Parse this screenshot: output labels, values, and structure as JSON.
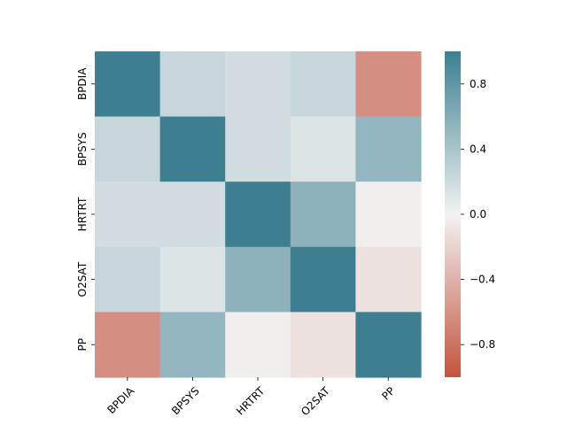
{
  "chart_data": {
    "type": "heatmap",
    "title": "",
    "xlabel": "",
    "ylabel": "",
    "rows": [
      "BPDIA",
      "BPSYS",
      "HRTRT",
      "O2SAT",
      "PP"
    ],
    "cols": [
      "BPDIA",
      "BPSYS",
      "HRTRT",
      "O2SAT",
      "PP"
    ],
    "values": [
      [
        1.0,
        0.24,
        0.18,
        0.24,
        -0.62
      ],
      [
        0.24,
        1.0,
        0.18,
        0.12,
        0.52
      ],
      [
        0.18,
        0.18,
        1.0,
        0.56,
        -0.02
      ],
      [
        0.24,
        0.12,
        0.56,
        1.0,
        -0.1
      ],
      [
        -0.62,
        0.52,
        -0.02,
        -0.1,
        1.0
      ]
    ],
    "colorbar": {
      "vmin": -1.0,
      "vmax": 1.0,
      "ticks": [
        -0.8,
        -0.4,
        0.0,
        0.4,
        0.8
      ],
      "tick_labels": [
        "−0.8",
        "−0.4",
        "0.0",
        "0.4",
        "0.8"
      ]
    },
    "colors": {
      "negative_end": "#c3533d",
      "neutral": "#f2f2f2",
      "positive_end": "#3d7f91"
    }
  }
}
